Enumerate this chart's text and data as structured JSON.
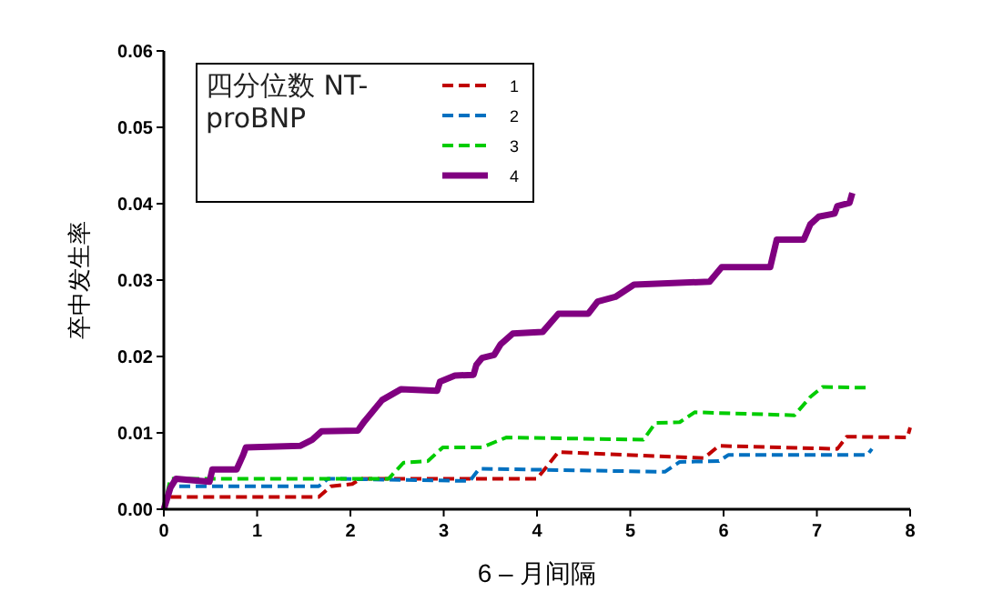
{
  "chart_data": {
    "type": "line",
    "xlabel": "6 – 月间隔",
    "ylabel": "卒中发生率",
    "legend_title": "四分位数 NT-proBNP",
    "legend": "top left",
    "grid": false,
    "marker": "none",
    "xlim": [
      0,
      8
    ],
    "xticks": [
      0,
      1,
      2,
      3,
      4,
      5,
      6,
      7,
      8
    ],
    "ylim": [
      0,
      0.06
    ],
    "yticks": [
      {
        "value": 0,
        "label": "0.00"
      },
      {
        "value": 0.01,
        "label": "0.01"
      },
      {
        "value": 0.02,
        "label": "0.02"
      },
      {
        "value": 0.03,
        "label": "0.03"
      },
      {
        "value": 0.04,
        "label": "0.04"
      },
      {
        "value": 0.05,
        "label": "0.05"
      },
      {
        "value": 0.06,
        "label": "0.06"
      }
    ],
    "series": [
      {
        "name": "1",
        "color": "#c00000",
        "line_style": "dashed",
        "x": [
          0,
          0.03,
          1.66,
          1.79,
          2.02,
          2.11,
          4.0,
          4.23,
          5.79,
          5.95,
          7.22,
          7.32,
          7.97,
          8.0
        ],
        "values": [
          0,
          0.0016,
          0.0016,
          0.003,
          0.0033,
          0.004,
          0.004,
          0.0075,
          0.0067,
          0.0083,
          0.0079,
          0.0095,
          0.0094,
          0.0107
        ]
      },
      {
        "name": "2",
        "color": "#0070c0",
        "line_style": "dashed",
        "x": [
          0,
          0.07,
          1.66,
          1.76,
          3.28,
          3.38,
          5.37,
          5.53,
          5.95,
          6.05,
          7.54,
          7.59
        ],
        "values": [
          0,
          0.003,
          0.003,
          0.004,
          0.0037,
          0.0053,
          0.0049,
          0.0062,
          0.0063,
          0.0071,
          0.0071,
          0.0079
        ]
      },
      {
        "name": "3",
        "color": "#00cc00",
        "line_style": "dashed",
        "x": [
          0,
          0.07,
          2.41,
          2.57,
          2.83,
          2.99,
          3.41,
          3.67,
          5.14,
          5.27,
          5.53,
          5.69,
          6.76,
          6.93,
          7.06,
          7.58
        ],
        "values": [
          0,
          0.004,
          0.004,
          0.0061,
          0.0063,
          0.0081,
          0.0081,
          0.0094,
          0.0091,
          0.0113,
          0.0114,
          0.0127,
          0.0123,
          0.0147,
          0.016,
          0.0159
        ]
      },
      {
        "name": "4",
        "color": "#800080",
        "line_style": "solid",
        "x": [
          0,
          0.07,
          0.13,
          0.49,
          0.52,
          0.78,
          0.85,
          0.88,
          1.46,
          1.59,
          1.69,
          2.08,
          2.15,
          2.34,
          2.54,
          2.93,
          2.96,
          3.12,
          3.32,
          3.35,
          3.41,
          3.54,
          3.61,
          3.74,
          4.06,
          4.23,
          4.55,
          4.65,
          4.84,
          5.04,
          5.85,
          5.98,
          6.5,
          6.57,
          6.86,
          6.93,
          7.02,
          7.19,
          7.22,
          7.35,
          7.38
        ],
        "values": [
          0,
          0.0028,
          0.004,
          0.0036,
          0.0052,
          0.0052,
          0.0071,
          0.0081,
          0.0083,
          0.0091,
          0.0102,
          0.0103,
          0.0115,
          0.0143,
          0.0157,
          0.0155,
          0.0167,
          0.0175,
          0.0176,
          0.0189,
          0.0198,
          0.0202,
          0.0216,
          0.023,
          0.0232,
          0.0256,
          0.0256,
          0.0272,
          0.0278,
          0.0294,
          0.0298,
          0.0317,
          0.0317,
          0.0353,
          0.0353,
          0.0373,
          0.0383,
          0.0387,
          0.0397,
          0.0401,
          0.0414
        ]
      }
    ]
  }
}
